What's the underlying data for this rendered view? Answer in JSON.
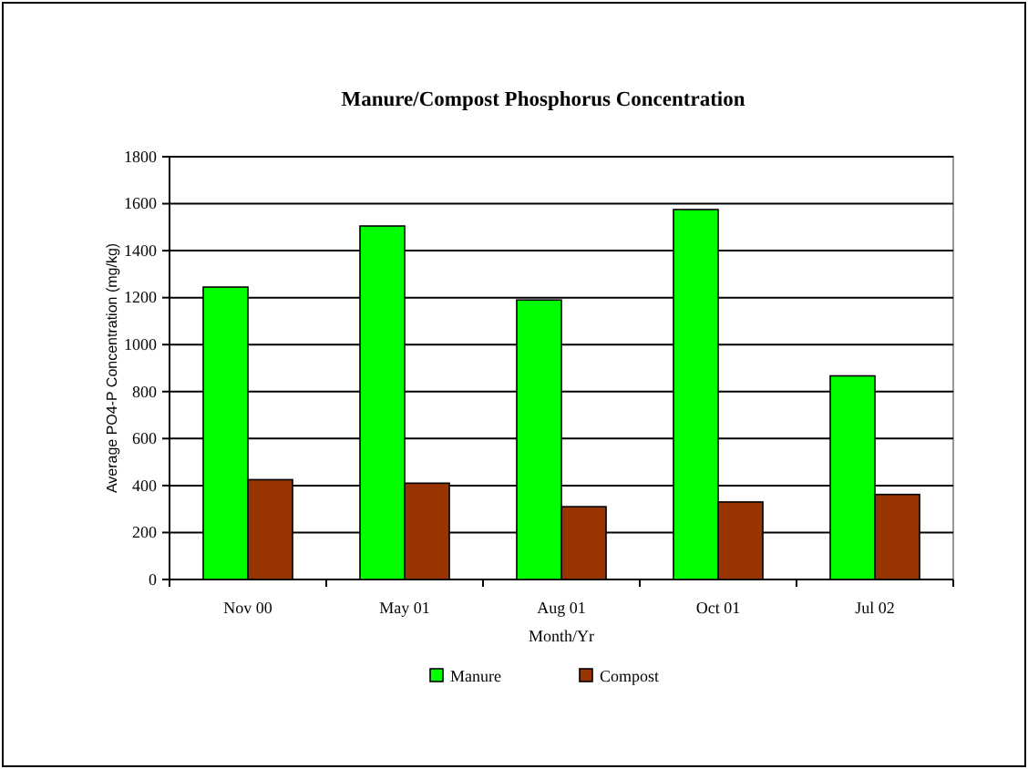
{
  "chart_data": {
    "type": "bar",
    "title": "Manure/Compost Phosphorus Concentration",
    "xlabel": "Month/Yr",
    "ylabel": "Average PO4-P Concentration (mg/kg)",
    "categories": [
      "Nov 00",
      "May 01",
      "Aug 01",
      "Oct 01",
      "Jul 02"
    ],
    "series": [
      {
        "name": "Manure",
        "color": "#00ff00",
        "values": [
          1245,
          1505,
          1190,
          1575,
          867
        ]
      },
      {
        "name": "Compost",
        "color": "#993300",
        "values": [
          425,
          410,
          310,
          330,
          362
        ]
      }
    ],
    "ylim": [
      0,
      1800
    ],
    "yticks": [
      0,
      200,
      400,
      600,
      800,
      1000,
      1200,
      1400,
      1600,
      1800
    ],
    "grid": "y",
    "legend": "bottom"
  }
}
